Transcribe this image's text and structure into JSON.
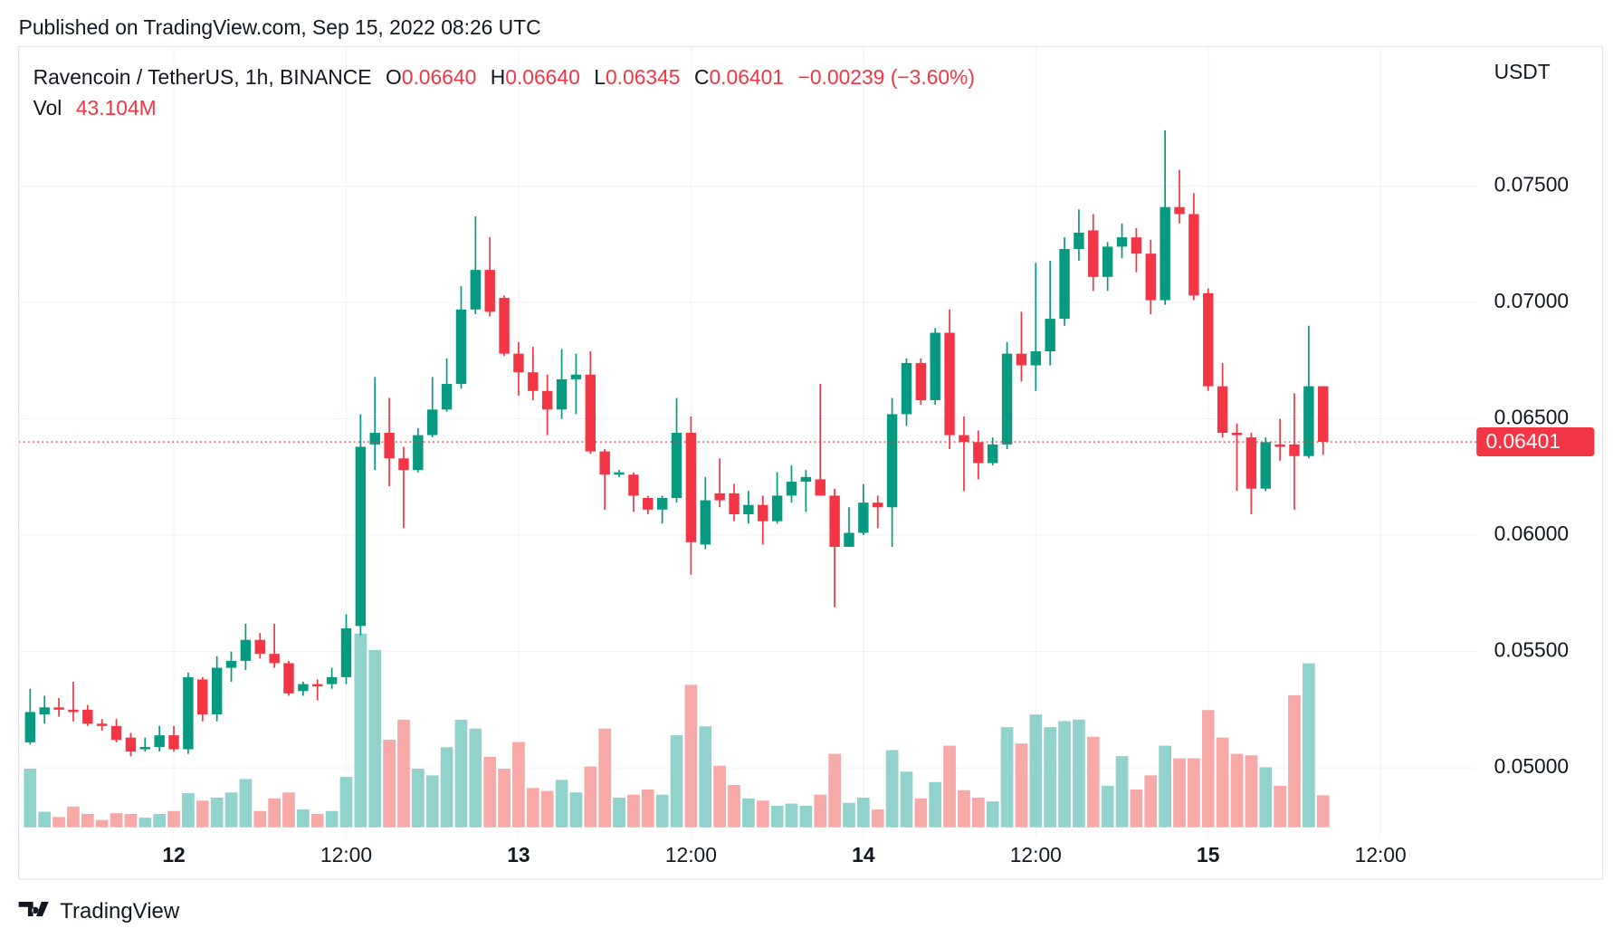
{
  "header": {
    "published": "Published on TradingView.com, Sep 15, 2022 08:26 UTC"
  },
  "footer": {
    "brand": "TradingView"
  },
  "chart_data": {
    "type": "candlestick",
    "legend": {
      "symbol": "Ravencoin / TetherUS, 1h, BINANCE",
      "open_label": "O",
      "open": "0.06640",
      "high_label": "H",
      "high": "0.06640",
      "low_label": "L",
      "low": "0.06345",
      "close_label": "C",
      "close": "0.06401",
      "change": "−0.00239 (−3.60%)",
      "volume_label": "Vol",
      "volume": "43.104M"
    },
    "y_axis_label": "USDT",
    "last_price_label": "0.06401",
    "up_color": "#089981",
    "down_color": "#f23645",
    "volume_up_color": "#92d2cc",
    "volume_down_color": "#f7a9a7",
    "grid": true,
    "x": [
      -10,
      -9,
      -8,
      -7,
      -6,
      -5,
      -4,
      -3,
      -2,
      -1,
      0,
      1,
      2,
      3,
      4,
      5,
      6,
      7,
      8,
      9,
      10,
      11,
      12,
      13,
      14,
      15,
      16,
      17,
      18,
      19,
      20,
      21,
      22,
      23,
      24,
      25,
      26,
      27,
      28,
      29,
      30,
      31,
      32,
      33,
      34,
      35,
      36,
      37,
      38,
      39,
      40,
      41,
      42,
      43,
      44,
      45,
      46,
      47,
      48,
      49,
      50,
      51,
      52,
      53,
      54,
      55,
      56,
      57,
      58,
      59,
      60,
      61,
      62,
      63,
      64,
      65,
      66,
      67,
      68,
      69,
      70,
      71,
      72,
      73,
      74,
      75,
      76,
      77,
      78,
      79,
      80
    ],
    "open": [
      0.0511,
      0.0523,
      0.0526,
      0.0525,
      0.0525,
      0.0519,
      0.0518,
      0.0513,
      0.0508,
      0.0509,
      0.0514,
      0.0508,
      0.0538,
      0.0523,
      0.0543,
      0.0546,
      0.0555,
      0.0549,
      0.0545,
      0.0533,
      0.0536,
      0.0536,
      0.0539,
      0.0561,
      0.0639,
      0.0644,
      0.0633,
      0.0628,
      0.0643,
      0.0654,
      0.0665,
      0.0697,
      0.0714,
      0.0702,
      0.0678,
      0.067,
      0.0662,
      0.0654,
      0.0667,
      0.0669,
      0.0636,
      0.0626,
      0.0626,
      0.0616,
      0.0611,
      0.0616,
      0.0644,
      0.0596,
      0.0618,
      0.0618,
      0.0609,
      0.0613,
      0.0606,
      0.0617,
      0.0623,
      0.0624,
      0.0617,
      0.0595,
      0.0601,
      0.0614,
      0.0612,
      0.0652,
      0.0674,
      0.0658,
      0.0687,
      0.0643,
      0.064,
      0.0631,
      0.0639,
      0.0678,
      0.0673,
      0.0679,
      0.0693,
      0.0723,
      0.0731,
      0.0711,
      0.0724,
      0.0728,
      0.0721,
      0.0701,
      0.0741,
      0.0738,
      0.0704,
      0.0664,
      0.0644,
      0.0642,
      0.062,
      0.0639,
      0.0639,
      0.0634,
      0.0664
    ],
    "high": [
      0.0534,
      0.0531,
      0.053,
      0.0537,
      0.0527,
      0.0521,
      0.0521,
      0.0515,
      0.0513,
      0.0518,
      0.0518,
      0.0541,
      0.0539,
      0.0548,
      0.055,
      0.0562,
      0.0558,
      0.0562,
      0.0546,
      0.0537,
      0.0538,
      0.0543,
      0.0566,
      0.0652,
      0.0668,
      0.0659,
      0.0638,
      0.0646,
      0.0668,
      0.0676,
      0.0707,
      0.0737,
      0.0728,
      0.0703,
      0.0683,
      0.0681,
      0.0669,
      0.068,
      0.0678,
      0.0679,
      0.0637,
      0.0628,
      0.0627,
      0.0617,
      0.0617,
      0.0659,
      0.0651,
      0.0625,
      0.0633,
      0.0622,
      0.0619,
      0.0617,
      0.0627,
      0.063,
      0.0628,
      0.0665,
      0.062,
      0.0612,
      0.0622,
      0.0617,
      0.0659,
      0.0676,
      0.0676,
      0.0689,
      0.0697,
      0.0651,
      0.0645,
      0.0642,
      0.0683,
      0.0696,
      0.0717,
      0.0718,
      0.0728,
      0.074,
      0.0738,
      0.0726,
      0.0734,
      0.0732,
      0.0727,
      0.0774,
      0.0757,
      0.0747,
      0.0706,
      0.0674,
      0.0648,
      0.0644,
      0.0642,
      0.065,
      0.0661,
      0.069,
      0.0664
    ],
    "low": [
      0.051,
      0.0519,
      0.0522,
      0.052,
      0.0518,
      0.0516,
      0.0511,
      0.0505,
      0.0507,
      0.0507,
      0.0507,
      0.0506,
      0.052,
      0.052,
      0.0537,
      0.0542,
      0.0547,
      0.0543,
      0.0531,
      0.0531,
      0.0529,
      0.0534,
      0.0536,
      0.0557,
      0.0628,
      0.0621,
      0.0603,
      0.0627,
      0.0642,
      0.0653,
      0.0663,
      0.0695,
      0.0694,
      0.0677,
      0.066,
      0.0658,
      0.0643,
      0.065,
      0.0652,
      0.0635,
      0.0611,
      0.0625,
      0.061,
      0.0609,
      0.0605,
      0.0614,
      0.0583,
      0.0594,
      0.0612,
      0.0606,
      0.0605,
      0.0596,
      0.0605,
      0.0614,
      0.061,
      0.0617,
      0.0569,
      0.0595,
      0.06,
      0.0603,
      0.0595,
      0.0647,
      0.0656,
      0.0656,
      0.0637,
      0.0619,
      0.0624,
      0.063,
      0.0637,
      0.0666,
      0.0662,
      0.0673,
      0.069,
      0.0718,
      0.0705,
      0.0705,
      0.0719,
      0.0713,
      0.0695,
      0.0699,
      0.0734,
      0.0701,
      0.0662,
      0.0642,
      0.0619,
      0.0609,
      0.0619,
      0.0632,
      0.0611,
      0.0633,
      0.06345
    ],
    "close": [
      0.0524,
      0.0526,
      0.0525,
      0.0524,
      0.0519,
      0.0518,
      0.0512,
      0.0507,
      0.0509,
      0.0514,
      0.0508,
      0.0539,
      0.0523,
      0.0543,
      0.0546,
      0.0555,
      0.0549,
      0.0545,
      0.0532,
      0.0536,
      0.0535,
      0.0539,
      0.056,
      0.0638,
      0.0644,
      0.0633,
      0.0628,
      0.0643,
      0.0654,
      0.0665,
      0.0697,
      0.0714,
      0.0696,
      0.0678,
      0.067,
      0.0662,
      0.0654,
      0.0667,
      0.0669,
      0.0636,
      0.0626,
      0.0627,
      0.0617,
      0.0611,
      0.0616,
      0.0644,
      0.0597,
      0.0615,
      0.0615,
      0.0609,
      0.0613,
      0.0606,
      0.0617,
      0.0623,
      0.0625,
      0.0617,
      0.0595,
      0.0601,
      0.0614,
      0.0612,
      0.0652,
      0.0674,
      0.0658,
      0.0687,
      0.0643,
      0.064,
      0.0631,
      0.0639,
      0.0678,
      0.0673,
      0.0679,
      0.0693,
      0.0723,
      0.073,
      0.0711,
      0.0724,
      0.0728,
      0.0721,
      0.0701,
      0.0741,
      0.0738,
      0.0703,
      0.0664,
      0.0644,
      0.0643,
      0.062,
      0.064,
      0.0638,
      0.0634,
      0.0664,
      0.06401
    ],
    "volume": [
      79,
      21,
      14,
      28,
      18,
      10,
      19,
      18,
      13,
      18,
      22,
      46,
      36,
      40,
      47,
      65,
      22,
      39,
      47,
      24,
      18,
      22,
      68,
      261,
      239,
      118,
      145,
      79,
      70,
      108,
      145,
      133,
      95,
      79,
      115,
      53,
      49,
      64,
      47,
      82,
      133,
      40,
      44,
      51,
      44,
      124,
      192,
      136,
      83,
      57,
      39,
      36,
      29,
      32,
      29,
      44,
      99,
      33,
      40,
      24,
      104,
      75,
      39,
      61,
      110,
      50,
      40,
      35,
      135,
      113,
      152,
      135,
      143,
      145,
      122,
      56,
      96,
      51,
      70,
      110,
      93,
      93,
      158,
      121,
      99,
      97,
      81,
      56,
      178,
      221,
      43.104
    ],
    "xlim": [
      -10.8,
      90.1
    ],
    "xticks": [
      {
        "value": 0,
        "label": "12"
      },
      {
        "value": 12,
        "label": "12:00"
      },
      {
        "value": 24,
        "label": "13"
      },
      {
        "value": 36,
        "label": "12:00"
      },
      {
        "value": 48,
        "label": "14"
      },
      {
        "value": 60,
        "label": "12:00"
      },
      {
        "value": 72,
        "label": "15"
      },
      {
        "value": 84,
        "label": "12:00"
      }
    ],
    "ylim": [
      0.047,
      0.081
    ],
    "yticks": [
      {
        "value": 0.05,
        "label": "0.05000"
      },
      {
        "value": 0.055,
        "label": "0.05500"
      },
      {
        "value": 0.06,
        "label": "0.06000"
      },
      {
        "value": 0.065,
        "label": "0.06500"
      },
      {
        "value": 0.07,
        "label": "0.07000"
      },
      {
        "value": 0.075,
        "label": "0.07500"
      }
    ],
    "vlim": [
      0,
      280
    ]
  }
}
